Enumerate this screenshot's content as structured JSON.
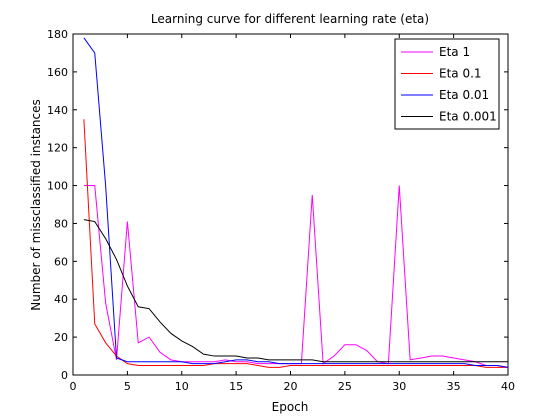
{
  "chart_data": {
    "type": "line",
    "title": "Learning curve for different learning rate (eta)",
    "xlabel": "Epoch",
    "ylabel": "Number of missclassified instances",
    "xlim": [
      0,
      40
    ],
    "ylim": [
      0,
      180
    ],
    "xticks": [
      0,
      5,
      10,
      15,
      20,
      25,
      30,
      35,
      40
    ],
    "yticks": [
      0,
      20,
      40,
      60,
      80,
      100,
      120,
      140,
      160,
      180
    ],
    "grid": false,
    "legend_position": "top-right",
    "x": [
      1,
      2,
      3,
      4,
      5,
      6,
      7,
      8,
      9,
      10,
      11,
      12,
      13,
      14,
      15,
      16,
      17,
      18,
      19,
      20,
      21,
      22,
      23,
      24,
      25,
      26,
      27,
      28,
      29,
      30,
      31,
      32,
      33,
      34,
      35,
      36,
      37,
      38,
      39,
      40
    ],
    "series": [
      {
        "name": "Eta 1",
        "color": "#ff00ff",
        "values": [
          100,
          100,
          38,
          8,
          81,
          17,
          20,
          12,
          8,
          7,
          7,
          7,
          7,
          8,
          7,
          7,
          6,
          6,
          6,
          6,
          6,
          95,
          6,
          10,
          16,
          16,
          13,
          7,
          6,
          100,
          8,
          9,
          10,
          10,
          9,
          8,
          7,
          5,
          5,
          4
        ]
      },
      {
        "name": "Eta 0.1",
        "color": "#ff0000",
        "values": [
          135,
          27,
          17,
          10,
          6,
          5,
          5,
          5,
          5,
          5,
          5,
          5,
          6,
          6,
          6,
          6,
          5,
          4,
          4,
          5,
          5,
          5,
          5,
          5,
          5,
          5,
          5,
          5,
          5,
          5,
          5,
          5,
          5,
          5,
          5,
          5,
          5,
          4,
          4,
          4
        ]
      },
      {
        "name": "Eta 0.01",
        "color": "#0000ff",
        "values": [
          178,
          170,
          100,
          9,
          7,
          7,
          7,
          7,
          7,
          7,
          6,
          6,
          6,
          7,
          8,
          8,
          7,
          7,
          6,
          6,
          6,
          6,
          6,
          6,
          6,
          6,
          6,
          6,
          6,
          6,
          6,
          6,
          6,
          6,
          6,
          6,
          5,
          5,
          5,
          4
        ]
      },
      {
        "name": "Eta 0.001",
        "color": "#000000",
        "values": [
          82,
          81,
          72,
          61,
          47,
          36,
          35,
          28,
          22,
          18,
          15,
          11,
          10,
          10,
          10,
          9,
          9,
          8,
          8,
          8,
          8,
          8,
          7,
          7,
          7,
          7,
          7,
          7,
          7,
          7,
          7,
          7,
          7,
          7,
          7,
          7,
          7,
          7,
          7,
          7
        ]
      }
    ]
  }
}
